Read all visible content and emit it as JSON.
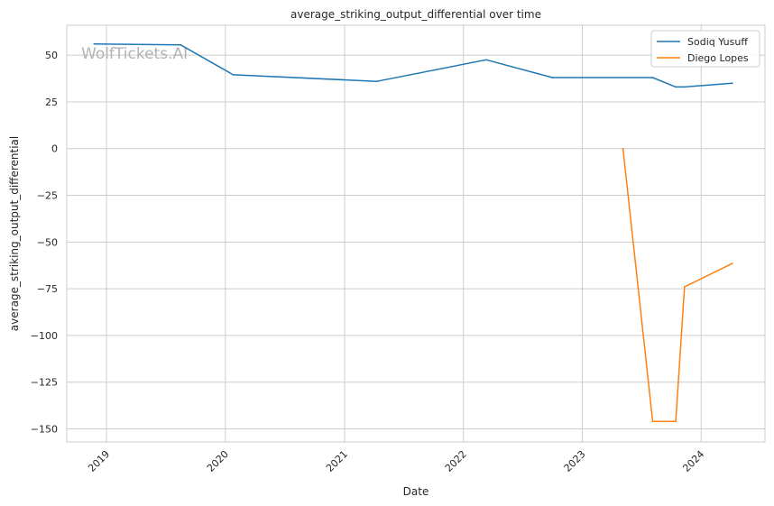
{
  "chart_data": {
    "type": "line",
    "title": "average_striking_output_differential over time",
    "xlabel": "Date",
    "ylabel": "average_striking_output_differential",
    "watermark": "WolfTickets.AI",
    "x_ticks": [
      "2019",
      "2020",
      "2021",
      "2022",
      "2023",
      "2024"
    ],
    "y_ticks": [
      50,
      25,
      0,
      -25,
      -50,
      -75,
      -100,
      -125,
      -150
    ],
    "xlim": [
      "2018-09-01",
      "2024-07-15"
    ],
    "ylim": [
      -157,
      66
    ],
    "grid": true,
    "legend_position": "top-right",
    "series": [
      {
        "name": "Sodiq Yusuff",
        "color": "#1f77b4",
        "points": [
          {
            "x": "2018-11-24",
            "y": 56
          },
          {
            "x": "2019-08-17",
            "y": 55.5
          },
          {
            "x": "2020-01-25",
            "y": 39.5
          },
          {
            "x": "2021-04-10",
            "y": 36
          },
          {
            "x": "2022-03-12",
            "y": 47.5
          },
          {
            "x": "2022-10-01",
            "y": 38
          },
          {
            "x": "2023-08-05",
            "y": 38
          },
          {
            "x": "2023-10-15",
            "y": 33
          },
          {
            "x": "2023-11-11",
            "y": 33
          },
          {
            "x": "2024-04-06",
            "y": 35
          }
        ]
      },
      {
        "name": "Diego Lopes",
        "color": "#ff7f0e",
        "points": [
          {
            "x": "2023-05-06",
            "y": 0
          },
          {
            "x": "2023-08-05",
            "y": -146
          },
          {
            "x": "2023-10-15",
            "y": -146
          },
          {
            "x": "2023-11-11",
            "y": -74
          },
          {
            "x": "2024-04-06",
            "y": -61.5
          }
        ]
      }
    ]
  }
}
